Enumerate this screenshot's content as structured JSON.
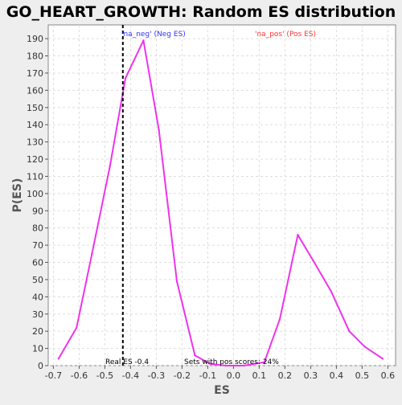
{
  "chart_data": {
    "type": "line",
    "title": "GO_HEART_GROWTH: Random ES distribution",
    "xlabel": "ES",
    "ylabel": "P(ES)",
    "xlim": [
      -0.72,
      0.63
    ],
    "ylim": [
      0,
      198
    ],
    "x_ticks": [
      -0.7,
      -0.6,
      -0.5,
      -0.4,
      -0.3,
      -0.2,
      -0.1,
      0.0,
      0.1,
      0.2,
      0.3,
      0.4,
      0.5,
      0.6
    ],
    "x_tick_labels": [
      "-0.7",
      "-0.6",
      "-0.5",
      "-0.4",
      "-0.3",
      "-0.2",
      "-0.1",
      "0.0",
      "0.1",
      "0.2",
      "0.3",
      "0.4",
      "0.5",
      "0.6"
    ],
    "y_ticks": [
      0,
      10,
      20,
      30,
      40,
      50,
      60,
      70,
      80,
      90,
      100,
      110,
      120,
      130,
      140,
      150,
      160,
      170,
      180,
      190
    ],
    "grid": true,
    "series": [
      {
        "values_xy": [
          [
            -0.68,
            4
          ],
          [
            -0.61,
            22
          ],
          [
            -0.55,
            65
          ],
          [
            -0.48,
            116
          ],
          [
            -0.42,
            167
          ],
          [
            -0.35,
            189
          ],
          [
            -0.29,
            137
          ],
          [
            -0.22,
            49
          ],
          [
            -0.15,
            6
          ],
          [
            -0.09,
            1
          ],
          [
            -0.03,
            0
          ],
          [
            0.04,
            0
          ],
          [
            0.12,
            2
          ],
          [
            0.18,
            27
          ],
          [
            0.25,
            76
          ],
          [
            0.31,
            61
          ],
          [
            0.38,
            43
          ],
          [
            0.45,
            20
          ],
          [
            0.51,
            11
          ],
          [
            0.58,
            4
          ]
        ],
        "color": "#ee33ee"
      }
    ],
    "real_es": {
      "x": -0.43,
      "label": "Real ES -0.4",
      "color": "#000000"
    },
    "annotations": {
      "neg_label": "'na_neg' (Neg ES)",
      "neg_color": "#3333ff",
      "pos_label": "'na_pos' (Pos ES)",
      "pos_color": "#ff3333",
      "sets_pos_label": "Sets with pos scores: 24%"
    },
    "colors": {
      "page_background": "#eeeeee",
      "plot_background": "#ffffff",
      "grid": "#dddddd",
      "axis": "#555555"
    }
  }
}
